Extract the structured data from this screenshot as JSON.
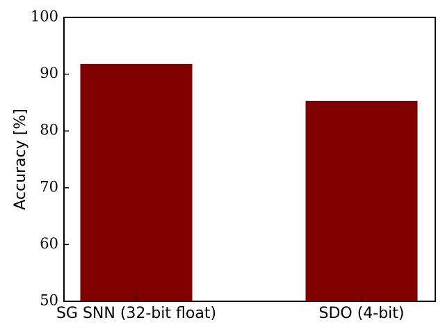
{
  "chart_data": {
    "type": "bar",
    "y_label": "Accuracy [%]",
    "categories": [
      "SG SNN (32-bit float)",
      "SDO (4-bit)"
    ],
    "values": [
      91.8,
      85.3
    ],
    "color": "#800000",
    "ylim": [
      50,
      100
    ],
    "yticks": [
      50,
      60,
      70,
      80,
      90,
      100
    ],
    "grid": false
  }
}
